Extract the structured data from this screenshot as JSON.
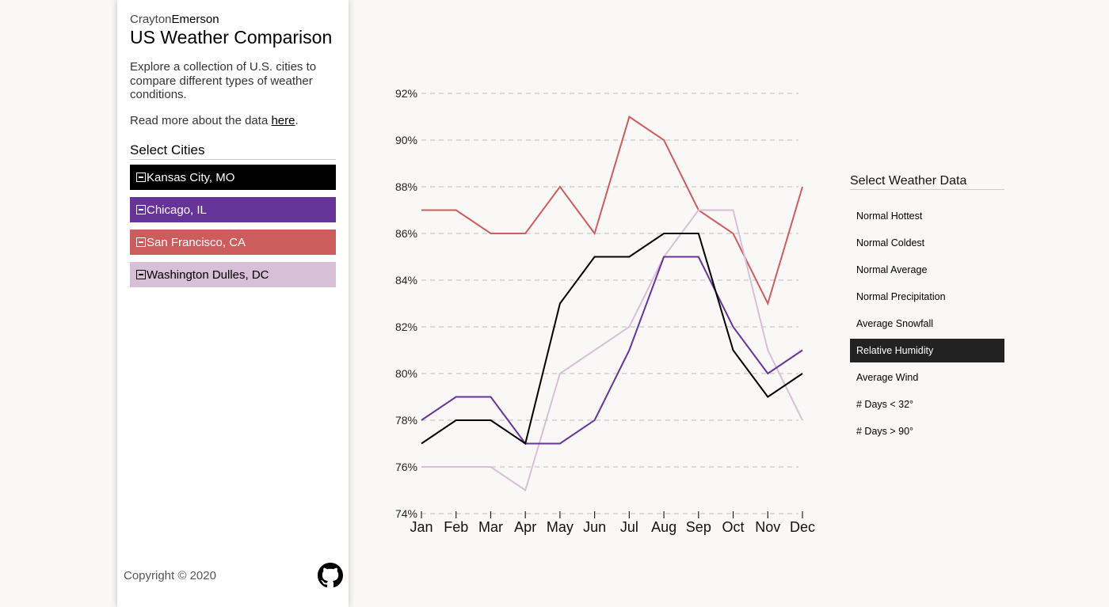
{
  "sidebar": {
    "brand_light": "Crayton",
    "brand_bold": "Emerson",
    "title": "US Weather Comparison",
    "description": "Explore a collection of U.S. cities to compare different types of weather conditions.",
    "read_more_prefix": "Read more about the data ",
    "read_more_link": "here",
    "read_more_suffix": ".",
    "select_cities_label": "Select Cities",
    "cities": [
      {
        "label": "Kansas City, MO",
        "color": "#000000",
        "text_color": "#ffffff"
      },
      {
        "label": "Chicago, IL",
        "color": "#663399",
        "text_color": "#ffffff"
      },
      {
        "label": "San Francisco, CA",
        "color": "#cd5c5c",
        "text_color": "#ffffff"
      },
      {
        "label": "Washington Dulles, DC",
        "color": "#d8bfd8",
        "text_color": "#000000"
      }
    ],
    "copyright": "Copyright © 2020",
    "github_icon": "github-icon"
  },
  "weather_panel": {
    "title": "Select Weather Data",
    "items": [
      {
        "label": "Normal Hottest",
        "active": false
      },
      {
        "label": "Normal Coldest",
        "active": false
      },
      {
        "label": "Normal Average",
        "active": false
      },
      {
        "label": "Normal Precipitation",
        "active": false
      },
      {
        "label": "Average Snowfall",
        "active": false
      },
      {
        "label": "Relative Humidity",
        "active": true
      },
      {
        "label": "Average Wind",
        "active": false
      },
      {
        "label": "# Days < 32°",
        "active": false
      },
      {
        "label": "# Days > 90°",
        "active": false
      }
    ]
  },
  "chart_data": {
    "type": "line",
    "title": "",
    "xlabel": "",
    "ylabel": "",
    "categories": [
      "Jan",
      "Feb",
      "Mar",
      "Apr",
      "May",
      "Jun",
      "Jul",
      "Aug",
      "Sep",
      "Oct",
      "Nov",
      "Dec"
    ],
    "ylim": [
      74,
      92
    ],
    "yticks": [
      74,
      76,
      78,
      80,
      82,
      84,
      86,
      88,
      90,
      92
    ],
    "ytick_suffix": "%",
    "grid": "horizontal dashed",
    "series": [
      {
        "name": "Kansas City, MO",
        "color": "#000000",
        "values": [
          77,
          78,
          78,
          77,
          83,
          85,
          85,
          86,
          86,
          81,
          79,
          80
        ]
      },
      {
        "name": "Chicago, IL",
        "color": "#663399",
        "values": [
          78,
          79,
          79,
          77,
          77,
          78,
          81,
          85,
          85,
          82,
          80,
          81
        ]
      },
      {
        "name": "San Francisco, CA",
        "color": "#cd5c5c",
        "values": [
          87,
          87,
          86,
          86,
          88,
          86,
          91,
          90,
          87,
          86,
          83,
          88
        ]
      },
      {
        "name": "Washington Dulles, DC",
        "color": "#d8bfd8",
        "values": [
          76,
          76,
          76,
          75,
          80,
          81,
          82,
          85,
          87,
          87,
          81,
          78
        ]
      }
    ]
  }
}
